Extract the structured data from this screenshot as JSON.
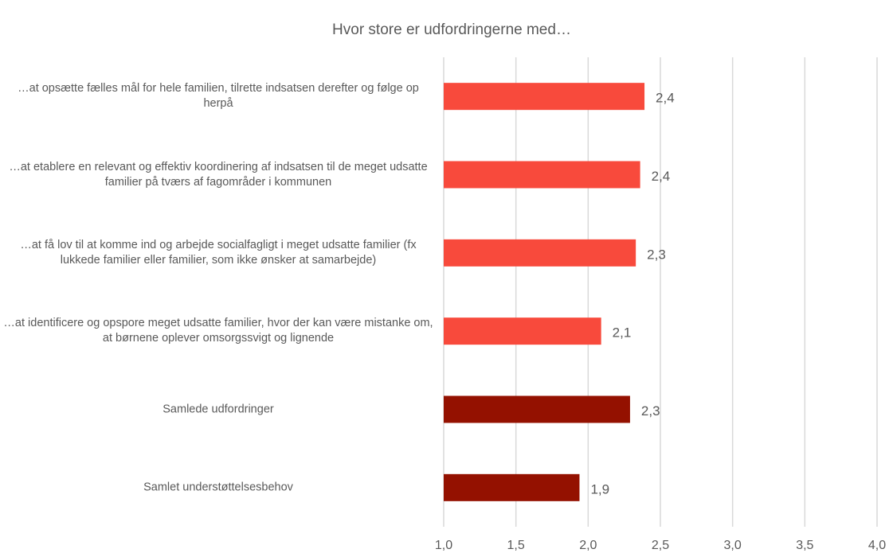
{
  "chart_data": {
    "type": "barh",
    "title": "Hvor store er udfordringerne med…",
    "categories": [
      "…at opsætte fælles mål for hele familien, tilrette indsatsen derefter og følge op herpå",
      "…at etablere en relevant og effektiv koordinering af indsatsen til de meget udsatte familier på tværs af fagområder i kommunen",
      "…at få lov til at komme ind og arbejde socialfagligt i meget udsatte familier (fx lukkede familier eller familier, som ikke ønsker at samarbejde)",
      "…at identificere og opspore meget udsatte familier, hvor der kan være mistanke om, at børnene oplever omsorgssvigt og lignende",
      "Samlede udfordringer",
      "Samlet understøttelsesbehov"
    ],
    "values": [
      2.39,
      2.36,
      2.33,
      2.09,
      2.29,
      1.94
    ],
    "value_labels": [
      "2,4",
      "2,4",
      "2,3",
      "2,1",
      "2,3",
      "1,9"
    ],
    "colors": [
      "#f84a3c",
      "#f84a3c",
      "#f84a3c",
      "#f84a3c",
      "#941100",
      "#941100"
    ],
    "xlim": [
      1.0,
      4.0
    ],
    "xticks": [
      {
        "value": 1.0,
        "label": "1,0"
      },
      {
        "value": 1.5,
        "label": "1,5"
      },
      {
        "value": 2.0,
        "label": "2,0"
      },
      {
        "value": 2.5,
        "label": "2,5"
      },
      {
        "value": 3.0,
        "label": "3,0"
      },
      {
        "value": 3.5,
        "label": "3,5"
      },
      {
        "value": 4.0,
        "label": "4,0"
      }
    ],
    "grid": true
  }
}
